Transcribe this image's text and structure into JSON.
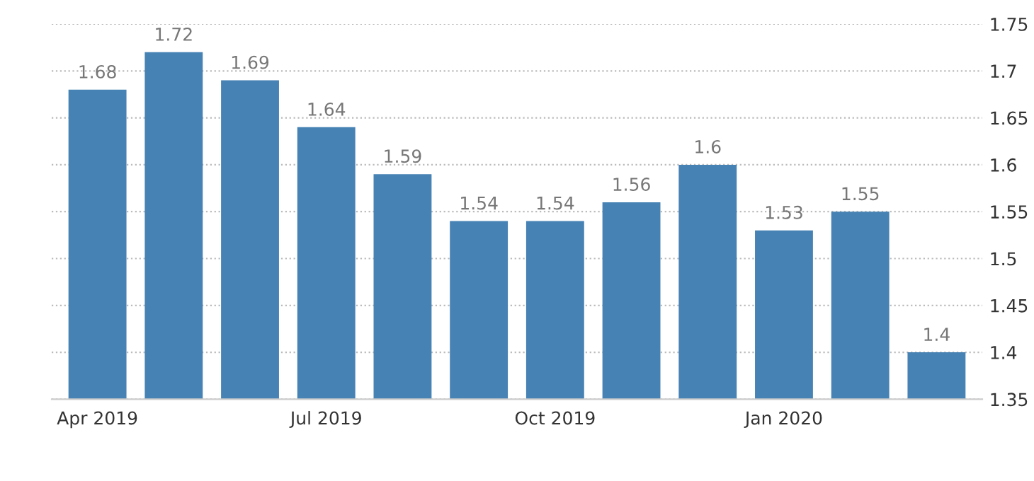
{
  "chart_data": {
    "type": "bar",
    "categories": [
      "Apr 2019",
      null,
      null,
      "Jul 2019",
      null,
      null,
      "Oct 2019",
      null,
      null,
      "Jan 2020",
      null,
      null
    ],
    "values": [
      1.68,
      1.72,
      1.69,
      1.64,
      1.59,
      1.54,
      1.54,
      1.56,
      1.6,
      1.53,
      1.55,
      1.4
    ],
    "color": "#4682b4",
    "ylim": [
      1.35,
      1.75
    ],
    "yticks": [
      1.35,
      1.4,
      1.45,
      1.5,
      1.55,
      1.6,
      1.65,
      1.7,
      1.75
    ],
    "grid": "y",
    "data_labels": true
  }
}
